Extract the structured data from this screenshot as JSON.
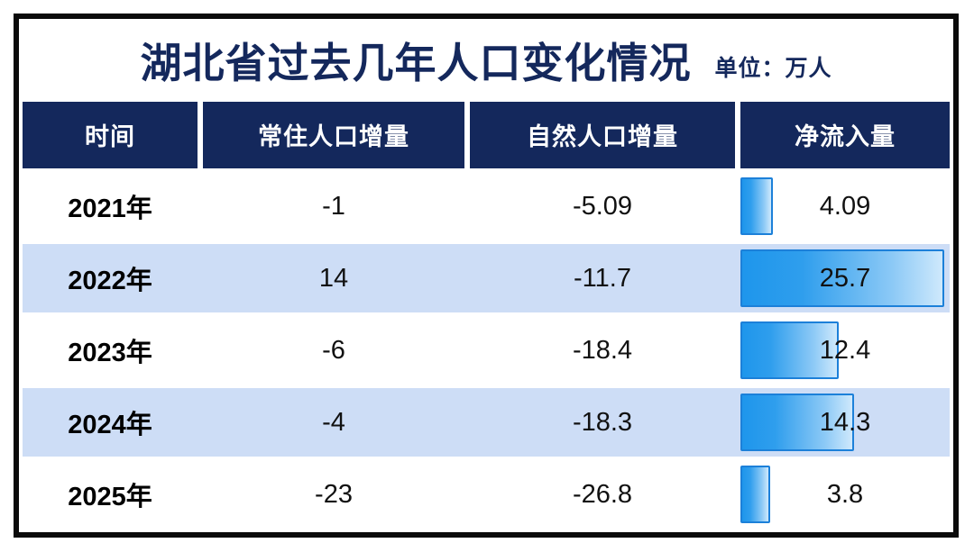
{
  "title": "湖北省过去几年人口变化情况",
  "unit_label": "单位：万人",
  "table": {
    "columns": {
      "time": "时间",
      "resident_increase": "常住人口增量",
      "natural_increase": "自然人口增量",
      "net_inflow": "净流入量"
    },
    "rows": [
      {
        "year": "2021年",
        "resident_increase": "-1",
        "natural_increase": "-5.09",
        "net_inflow": "4.09"
      },
      {
        "year": "2022年",
        "resident_increase": "14",
        "natural_increase": "-11.7",
        "net_inflow": "25.7"
      },
      {
        "year": "2023年",
        "resident_increase": "-6",
        "natural_increase": "-18.4",
        "net_inflow": "12.4"
      },
      {
        "year": "2024年",
        "resident_increase": "-4",
        "natural_increase": "-18.3",
        "net_inflow": "14.3"
      },
      {
        "year": "2025年",
        "resident_increase": "-23",
        "natural_increase": "-26.8",
        "net_inflow": "3.8"
      }
    ]
  },
  "chart_data": {
    "type": "table",
    "title": "湖北省过去几年人口变化情况",
    "unit": "万人",
    "categories": [
      "2021年",
      "2022年",
      "2023年",
      "2024年",
      "2025年"
    ],
    "series": [
      {
        "name": "常住人口增量",
        "values": [
          -1,
          14,
          -6,
          -4,
          -23
        ]
      },
      {
        "name": "自然人口增量",
        "values": [
          -5.09,
          -11.7,
          -18.4,
          -18.3,
          -26.8
        ]
      },
      {
        "name": "净流入量",
        "values": [
          4.09,
          25.7,
          12.4,
          14.3,
          3.8
        ],
        "visualized_as": "bar"
      }
    ],
    "bar_scale_max": 25.7
  },
  "colors": {
    "header_navy": "#14285c",
    "row_alt_blue": "#cdddf6",
    "bar_fill_start": "#1e96ec",
    "bar_fill_end": "#cfe9fc",
    "bar_border": "#1c80d9",
    "outer_border": "#0b0b0b"
  }
}
